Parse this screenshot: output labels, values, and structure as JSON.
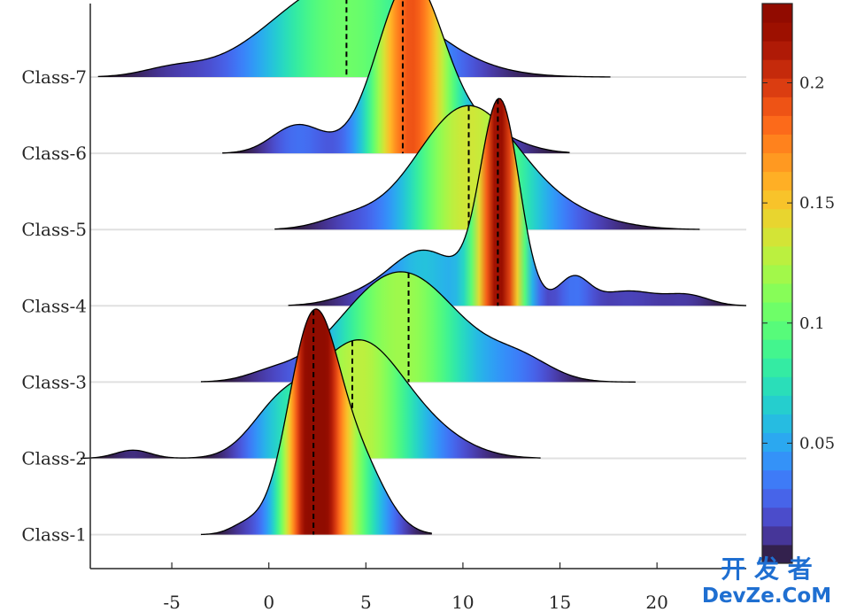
{
  "chart_data": {
    "type": "ridgeline",
    "title": "",
    "xlabel": "",
    "ylabel": "",
    "xlim": [
      -9.2,
      24.6
    ],
    "x_ticks": [
      -5,
      0,
      5,
      10,
      15,
      20
    ],
    "grid": "horizontal baselines only",
    "colormap": "turbo",
    "colorbar": {
      "range": [
        0,
        0.233
      ],
      "ticks": [
        0.05,
        0.1,
        0.15,
        0.2
      ],
      "tick_labels": [
        "0.05",
        "0.1",
        "0.15",
        "0.2"
      ],
      "levels": 30
    },
    "series": [
      {
        "name": "Class-1",
        "xmin": -3.5,
        "xmax": 8.4,
        "median": 2.3,
        "components": [
          {
            "mu": 2.3,
            "sigma": 1.3,
            "weight": 0.76
          },
          {
            "mu": 4.8,
            "sigma": 1.3,
            "weight": 0.22
          },
          {
            "mu": -1.2,
            "sigma": 0.8,
            "weight": 0.02
          }
        ]
      },
      {
        "name": "Class-2",
        "xmin": -9.7,
        "xmax": 14.0,
        "median": 4.3,
        "components": [
          {
            "mu": 4.6,
            "sigma": 2.3,
            "weight": 0.72
          },
          {
            "mu": 0.5,
            "sigma": 1.5,
            "weight": 0.17
          },
          {
            "mu": 8.5,
            "sigma": 2.0,
            "weight": 0.09
          },
          {
            "mu": -7.0,
            "sigma": 0.9,
            "weight": 0.02
          }
        ]
      },
      {
        "name": "Class-3",
        "xmin": -3.5,
        "xmax": 18.9,
        "median": 7.2,
        "components": [
          {
            "mu": 6.8,
            "sigma": 3.0,
            "weight": 0.9
          },
          {
            "mu": 13.0,
            "sigma": 1.6,
            "weight": 0.08
          },
          {
            "mu": 0.0,
            "sigma": 1.2,
            "weight": 0.02
          }
        ]
      },
      {
        "name": "Class-4",
        "xmin": 1.0,
        "xmax": 24.6,
        "median": 11.8,
        "components": [
          {
            "mu": 11.9,
            "sigma": 1.0,
            "weight": 0.55
          },
          {
            "mu": 8.0,
            "sigma": 1.8,
            "weight": 0.27
          },
          {
            "mu": 15.7,
            "sigma": 0.8,
            "weight": 0.06
          },
          {
            "mu": 18.5,
            "sigma": 1.5,
            "weight": 0.06
          },
          {
            "mu": 21.6,
            "sigma": 1.1,
            "weight": 0.03
          },
          {
            "mu": 4.5,
            "sigma": 1.5,
            "weight": 0.03
          }
        ]
      },
      {
        "name": "Class-5",
        "xmin": 0.3,
        "xmax": 22.2,
        "median": 10.3,
        "components": [
          {
            "mu": 10.2,
            "sigma": 2.6,
            "weight": 0.86
          },
          {
            "mu": 15.0,
            "sigma": 2.5,
            "weight": 0.1
          },
          {
            "mu": 4.0,
            "sigma": 1.5,
            "weight": 0.04
          }
        ]
      },
      {
        "name": "Class-6",
        "xmin": -2.4,
        "xmax": 15.5,
        "median": 6.9,
        "components": [
          {
            "mu": 7.3,
            "sigma": 1.7,
            "weight": 0.8
          },
          {
            "mu": 1.5,
            "sigma": 1.3,
            "weight": 0.1
          },
          {
            "mu": 11.0,
            "sigma": 1.8,
            "weight": 0.1
          }
        ]
      },
      {
        "name": "Class-7",
        "xmin": -8.8,
        "xmax": 17.6,
        "median": 4.0,
        "components": [
          {
            "mu": 4.0,
            "sigma": 3.7,
            "weight": 0.97
          },
          {
            "mu": -5.0,
            "sigma": 1.5,
            "weight": 0.03
          }
        ]
      }
    ]
  },
  "watermark": {
    "line1": "开 发 者",
    "line2": "DevZe.CoM"
  }
}
